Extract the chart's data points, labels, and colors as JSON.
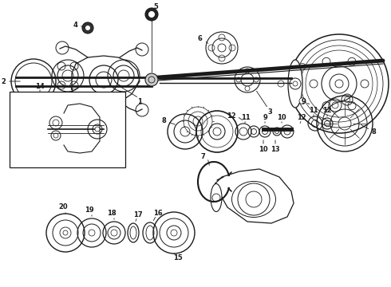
{
  "bg_color": "white",
  "line_color": "#1a1a1a",
  "gray_color": "#555555",
  "light_gray": "#888888",
  "fig_w": 4.9,
  "fig_h": 3.6,
  "dpi": 100,
  "label_fs": 6.0
}
